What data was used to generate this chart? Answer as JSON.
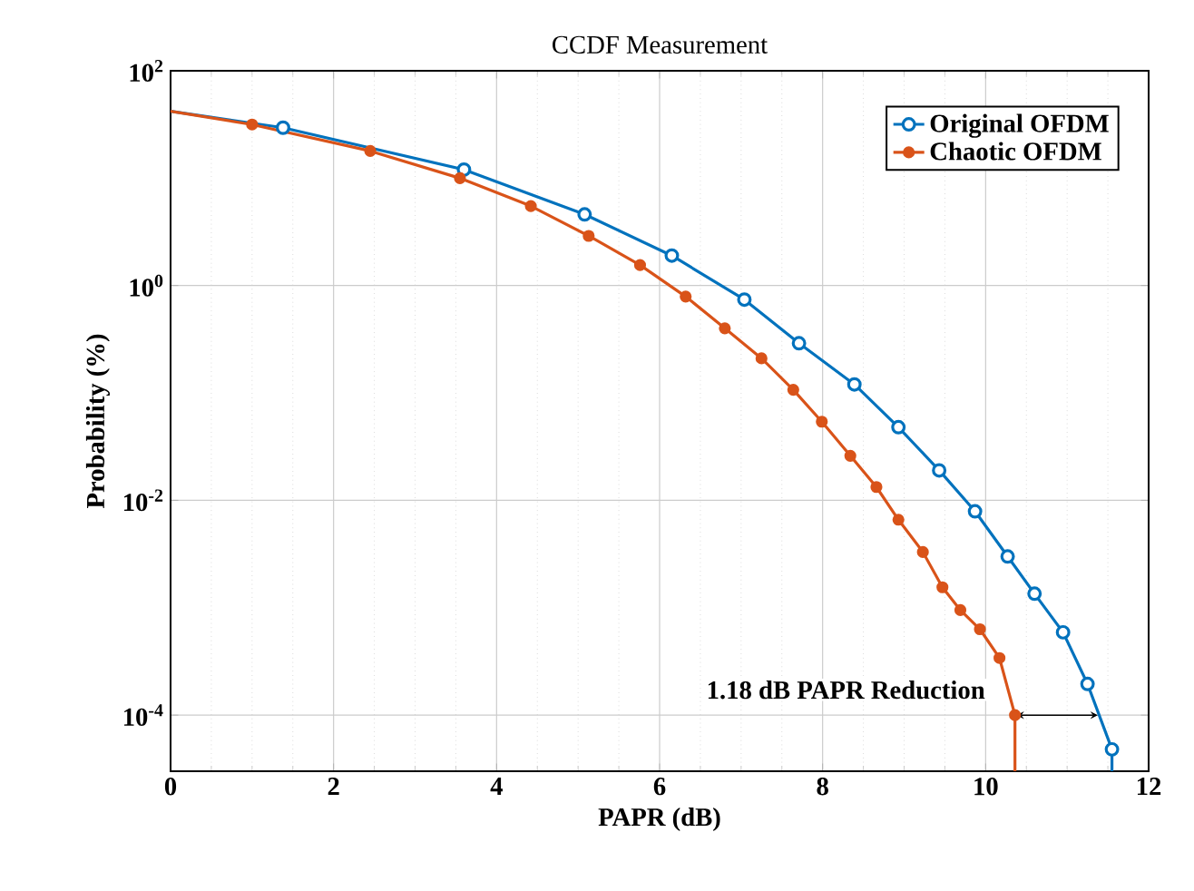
{
  "chart_data": {
    "type": "line",
    "title": "CCDF Measurement",
    "xlabel": "PAPR (dB)",
    "ylabel": "Probability (%)",
    "log": "y",
    "grid": true,
    "legend": "top right",
    "marker": "circle",
    "line_style": "solid",
    "xlim": [
      0,
      12
    ],
    "xticks": [
      0,
      2,
      4,
      6,
      8,
      10,
      12
    ],
    "ylim": [
      3e-05,
      100
    ],
    "yticks": [
      {
        "value": 0.0001,
        "label": "10$^{-4}$"
      },
      {
        "value": 0.01,
        "label": "10$^{-2}$"
      },
      {
        "value": 1,
        "label": "10$^{0}$"
      },
      {
        "value": 100,
        "label": "10$^{2}$"
      }
    ],
    "series": [
      {
        "name": "Original OFDM",
        "color": "#0072bd",
        "x": [
          0,
          1.38,
          3.6,
          5.08,
          6.15,
          7.04,
          7.71,
          8.39,
          8.93,
          9.43,
          9.87,
          10.27,
          10.6,
          10.95,
          11.25,
          11.55,
          11.55
        ],
        "values": [
          42,
          29.5,
          12,
          4.6,
          1.9,
          0.74,
          0.29,
          0.12,
          0.048,
          0.019,
          0.0079,
          0.003,
          0.00135,
          0.00059,
          0.000195,
          4.8e-05,
          3e-05
        ]
      },
      {
        "name": "Chaotic OFDM",
        "color": "#d95319",
        "x": [
          0,
          1.0,
          2.45,
          3.55,
          4.42,
          5.13,
          5.76,
          6.32,
          6.8,
          7.25,
          7.64,
          7.99,
          8.34,
          8.66,
          8.93,
          9.23,
          9.47,
          9.69,
          9.93,
          10.17,
          10.36,
          10.36
        ],
        "values": [
          42,
          31.6,
          17.9,
          10,
          5.5,
          2.9,
          1.55,
          0.79,
          0.4,
          0.21,
          0.107,
          0.054,
          0.026,
          0.0133,
          0.0066,
          0.0033,
          0.00155,
          0.00095,
          0.00063,
          0.00034,
          0.0001,
          3e-05
        ]
      }
    ],
    "annotations": [
      "1.18 dB PAPR Reduction"
    ]
  }
}
